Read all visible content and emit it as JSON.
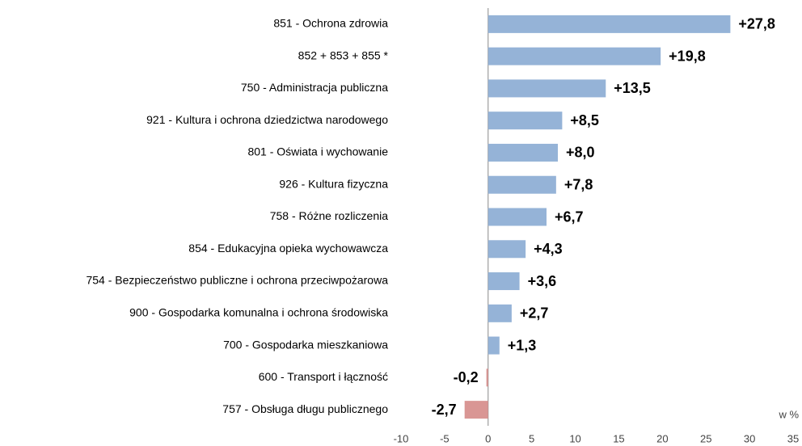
{
  "chart_data": {
    "type": "bar",
    "orientation": "horizontal",
    "categories": [
      "851 - Ochrona zdrowia",
      "852 + 853 + 855 *",
      "750 - Administracja publiczna",
      "921 - Kultura i ochrona dziedzictwa narodowego",
      "801 - Oświata i wychowanie",
      "926 - Kultura fizyczna",
      "758 - Różne rozliczenia",
      "854 - Edukacyjna opieka wychowawcza",
      "754 - Bezpieczeństwo publiczne i ochrona przeciwpożarowa",
      "900 - Gospodarka komunalna i ochrona środowiska",
      "700 - Gospodarka mieszkaniowa",
      "600 - Transport i łączność",
      "757 - Obsługa długu publicznego"
    ],
    "values": [
      27.8,
      19.8,
      13.5,
      8.5,
      8.0,
      7.8,
      6.7,
      4.3,
      3.6,
      2.7,
      1.3,
      -0.2,
      -2.7
    ],
    "value_labels": [
      "+27,8",
      "+19,8",
      "+13,5",
      "+8,5",
      "+8,0",
      "+7,8",
      "+6,7",
      "+4,3",
      "+3,6",
      "+2,7",
      "+1,3",
      "-0,2",
      "-2,7"
    ],
    "color": "#95b3d7",
    "negative_color": "#d99694",
    "xlabel": "w %",
    "xlim": [
      -10,
      35
    ],
    "xticks": [
      -10,
      -5,
      0,
      5,
      10,
      15,
      20,
      25,
      30,
      35
    ],
    "grid": false
  }
}
